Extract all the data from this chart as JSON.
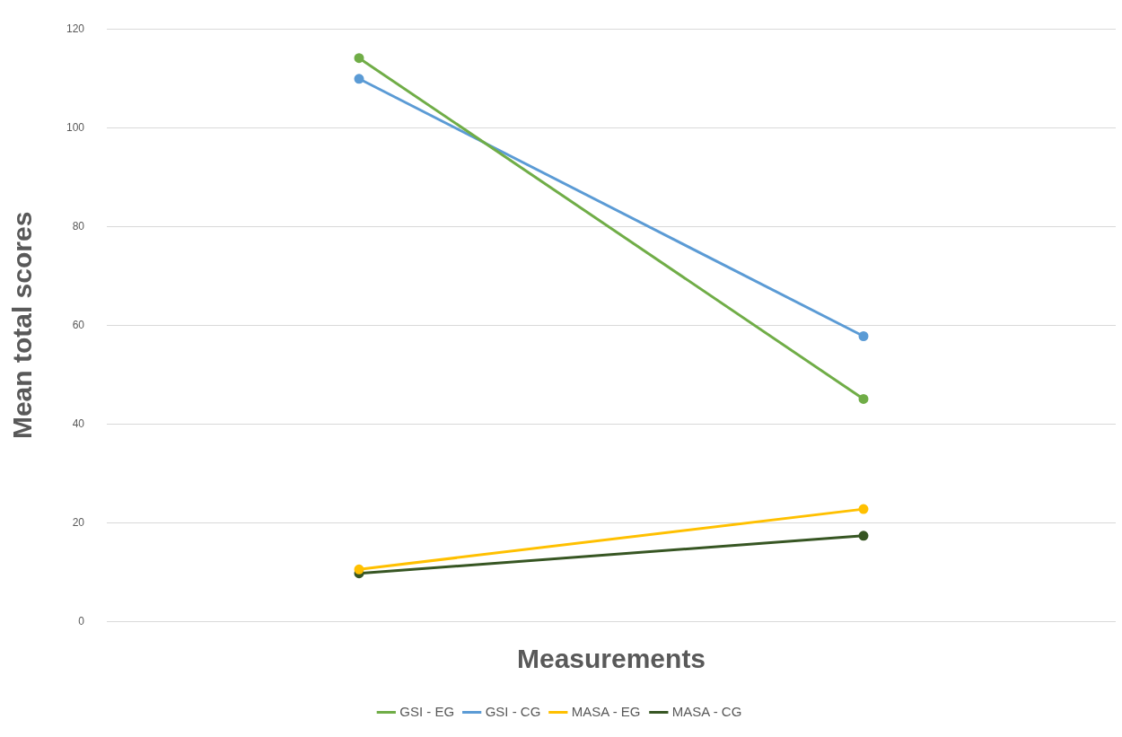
{
  "chart_data": {
    "type": "line",
    "xlabel": "Measurements",
    "ylabel": "Mean total scores",
    "categories": [
      null,
      null
    ],
    "series": [
      {
        "name": "GSI - EG",
        "color": "#70ad47",
        "values": [
          114.1,
          45.1
        ]
      },
      {
        "name": "GSI - CG",
        "color": "#5b9bd5",
        "values": [
          109.9,
          57.8
        ]
      },
      {
        "name": "MASA - EG",
        "color": "#ffc000",
        "values": [
          10.6,
          22.8
        ]
      },
      {
        "name": "MASA - CG",
        "color": "#375623",
        "values": [
          9.8,
          17.4
        ]
      }
    ],
    "ylim": [
      0,
      120
    ],
    "yticks": [
      0,
      20,
      40,
      60,
      80,
      100,
      120
    ],
    "grid": "y",
    "legend": "bottom",
    "marker": "circle",
    "line_style": "solid"
  }
}
